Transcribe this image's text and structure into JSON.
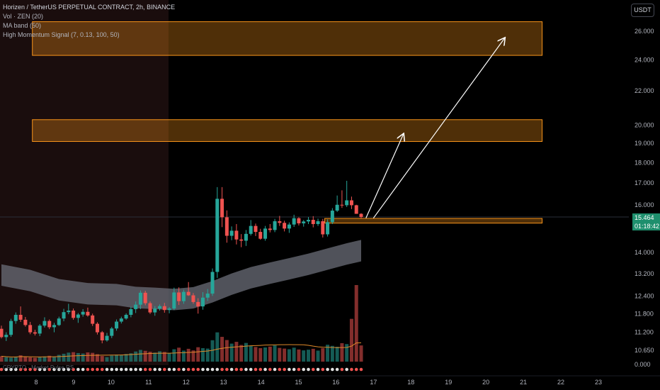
{
  "header": {
    "title": "Horizen / TetherUS PERPETUAL CONTRACT, 2h, BINANCE",
    "indicators": [
      "Vol · ZEN (20)",
      "MA band (50)",
      "High Momentum Signal (7, 0.13, 100, 50)"
    ]
  },
  "currency_button": "USDT",
  "last_price": {
    "price": "15.464",
    "countdown": "01:18:42"
  },
  "bottom_indicator_label": "CRYPTO · Market Pulse RS",
  "colors": {
    "up": "#26a69a",
    "down": "#ef5350",
    "zone": "#f7931a",
    "band": "#6b6e78",
    "background": "#000000"
  },
  "chart_data": {
    "type": "candlestick",
    "scale": "log",
    "x_ticks": [
      "8",
      "9",
      "10",
      "11",
      "12",
      "13",
      "14",
      "15",
      "16",
      "17",
      "18",
      "19",
      "20",
      "21",
      "22",
      "23"
    ],
    "y_ticks": [
      "26.000",
      "24.000",
      "22.000",
      "20.000",
      "19.000",
      "18.000",
      "17.000",
      "16.000",
      "14.000",
      "13.200",
      "12.400",
      "11.800",
      "11.200",
      "10.650",
      "0.000"
    ],
    "zones": [
      {
        "from": 24.3,
        "to": 26.7,
        "x_start": "7.9",
        "x_end": "21.5"
      },
      {
        "from": 19.1,
        "to": 20.3,
        "x_start": "7.9",
        "x_end": "21.5"
      },
      {
        "from": 15.2,
        "to": 15.4,
        "x_start": "15.7",
        "x_end": "21.5"
      }
    ],
    "arrows": [
      {
        "from": [
          "16.8",
          15.6
        ],
        "to": [
          "17.8",
          19.5
        ]
      },
      {
        "from": [
          "17.0",
          15.6
        ],
        "to": [
          "20.5",
          25.5
        ]
      }
    ],
    "series": [
      {
        "name": "ZEN",
        "kind": "ohlc",
        "values": [
          [
            11.31,
            11.41,
            11.01,
            11.05
          ],
          [
            11.05,
            11.2,
            10.93,
            11.12
          ],
          [
            11.12,
            11.63,
            11.06,
            11.56
          ],
          [
            11.56,
            11.84,
            11.47,
            11.76
          ],
          [
            11.76,
            12.04,
            11.53,
            11.6
          ],
          [
            11.6,
            11.69,
            11.38,
            11.43
          ],
          [
            11.43,
            11.53,
            11.14,
            11.2
          ],
          [
            11.2,
            11.28,
            11.1,
            11.16
          ],
          [
            11.16,
            11.46,
            11.08,
            11.41
          ],
          [
            11.41,
            11.68,
            11.35,
            11.56
          ],
          [
            11.56,
            11.61,
            11.3,
            11.36
          ],
          [
            11.36,
            11.5,
            11.2,
            11.43
          ],
          [
            11.43,
            11.7,
            11.4,
            11.64
          ],
          [
            11.64,
            11.96,
            11.55,
            11.85
          ],
          [
            11.85,
            12.13,
            11.78,
            11.9
          ],
          [
            11.9,
            11.97,
            11.6,
            11.66
          ],
          [
            11.66,
            11.82,
            11.5,
            11.77
          ],
          [
            11.77,
            11.95,
            11.7,
            11.86
          ],
          [
            11.86,
            12.0,
            11.7,
            11.74
          ],
          [
            11.74,
            11.8,
            11.4,
            11.47
          ],
          [
            11.47,
            11.52,
            11.13,
            11.2
          ],
          [
            11.2,
            11.24,
            10.86,
            10.95
          ],
          [
            10.95,
            11.18,
            10.91,
            11.09
          ],
          [
            11.09,
            11.37,
            11.02,
            11.32
          ],
          [
            11.32,
            11.61,
            11.25,
            11.54
          ],
          [
            11.54,
            11.7,
            11.48,
            11.64
          ],
          [
            11.64,
            11.81,
            11.6,
            11.76
          ],
          [
            11.76,
            12.03,
            11.68,
            11.95
          ],
          [
            11.95,
            12.21,
            11.82,
            12.1
          ],
          [
            12.1,
            12.59,
            11.95,
            12.51
          ],
          [
            12.51,
            12.58,
            12.08,
            12.15
          ],
          [
            12.15,
            12.21,
            11.79,
            11.84
          ],
          [
            11.84,
            12.05,
            11.73,
            11.97
          ],
          [
            11.97,
            12.11,
            11.9,
            12.05
          ],
          [
            12.05,
            12.16,
            11.83,
            11.92
          ],
          [
            11.92,
            12.02,
            11.81,
            11.97
          ],
          [
            11.97,
            12.69,
            11.92,
            12.52
          ],
          [
            12.52,
            12.7,
            12.09,
            12.22
          ],
          [
            12.22,
            12.62,
            12.13,
            12.54
          ],
          [
            12.54,
            12.89,
            12.4,
            12.42
          ],
          [
            12.42,
            12.5,
            12.13,
            12.19
          ],
          [
            12.19,
            12.32,
            11.8,
            12.04
          ],
          [
            12.04,
            12.53,
            11.93,
            12.34
          ],
          [
            12.34,
            12.64,
            12.23,
            12.48
          ],
          [
            12.48,
            13.39,
            12.4,
            13.26
          ],
          [
            13.26,
            16.81,
            13.04,
            16.27
          ],
          [
            16.27,
            16.81,
            15.03,
            15.45
          ],
          [
            15.45,
            15.75,
            14.39,
            14.67
          ],
          [
            14.67,
            15.06,
            14.49,
            14.88
          ],
          [
            14.88,
            15.16,
            14.32,
            14.52
          ],
          [
            14.52,
            14.74,
            14.21,
            14.47
          ],
          [
            14.47,
            14.91,
            14.26,
            14.75
          ],
          [
            14.75,
            15.33,
            14.68,
            15.08
          ],
          [
            15.08,
            15.18,
            14.66,
            14.83
          ],
          [
            14.83,
            14.96,
            14.51,
            14.55
          ],
          [
            14.55,
            15.08,
            14.47,
            14.97
          ],
          [
            14.97,
            15.16,
            14.81,
            14.91
          ],
          [
            14.91,
            15.38,
            14.82,
            15.28
          ],
          [
            15.28,
            15.51,
            15.08,
            15.21
          ],
          [
            15.21,
            15.3,
            14.85,
            14.97
          ],
          [
            14.97,
            15.23,
            14.79,
            15.14
          ],
          [
            15.14,
            15.56,
            15.04,
            15.41
          ],
          [
            15.41,
            15.45,
            15.1,
            15.19
          ],
          [
            15.19,
            15.33,
            15.05,
            15.27
          ],
          [
            15.27,
            15.46,
            15.16,
            15.34
          ],
          [
            15.34,
            15.5,
            15.02,
            15.16
          ],
          [
            15.16,
            15.39,
            15.08,
            15.28
          ],
          [
            15.28,
            15.38,
            14.6,
            14.73
          ],
          [
            14.73,
            15.36,
            14.64,
            15.24
          ],
          [
            15.24,
            15.85,
            15.16,
            15.74
          ],
          [
            15.74,
            16.42,
            15.68,
            16.0
          ],
          [
            16.0,
            16.66,
            15.86,
            15.98
          ],
          [
            15.98,
            17.11,
            15.9,
            16.2
          ],
          [
            16.2,
            16.37,
            15.81,
            15.98
          ],
          [
            15.98,
            16.0,
            15.6,
            15.6
          ],
          [
            15.6,
            15.63,
            15.4,
            15.46
          ]
        ]
      },
      {
        "name": "Vol",
        "kind": "volume",
        "values": [
          24,
          20,
          18,
          22,
          28,
          21,
          19,
          17,
          20,
          23,
          26,
          22,
          30,
          35,
          40,
          42,
          38,
          36,
          41,
          39,
          33,
          25,
          20,
          27,
          31,
          29,
          34,
          37,
          45,
          52,
          48,
          44,
          40,
          46,
          43,
          38,
          55,
          62,
          49,
          57,
          50,
          64,
          60,
          58,
          95,
          130,
          110,
          96,
          80,
          88,
          74,
          83,
          70,
          65,
          60,
          63,
          67,
          72,
          61,
          58,
          55,
          62,
          54,
          50,
          53,
          57,
          49,
          60,
          75,
          70,
          66,
          82,
          78,
          190,
          340,
          72
        ]
      }
    ],
    "band_center": [
      [
        0,
        13.15
      ],
      [
        6,
        12.95
      ],
      [
        12,
        12.62
      ],
      [
        18,
        12.48
      ],
      [
        24,
        12.45
      ],
      [
        28,
        12.35
      ],
      [
        32,
        12.32
      ],
      [
        36,
        12.28
      ],
      [
        40,
        12.34
      ],
      [
        44,
        12.55
      ],
      [
        48,
        12.82
      ],
      [
        52,
        13.05
      ],
      [
        56,
        13.22
      ],
      [
        60,
        13.38
      ],
      [
        64,
        13.55
      ],
      [
        68,
        13.75
      ],
      [
        72,
        13.95
      ],
      [
        75,
        14.08
      ]
    ]
  }
}
